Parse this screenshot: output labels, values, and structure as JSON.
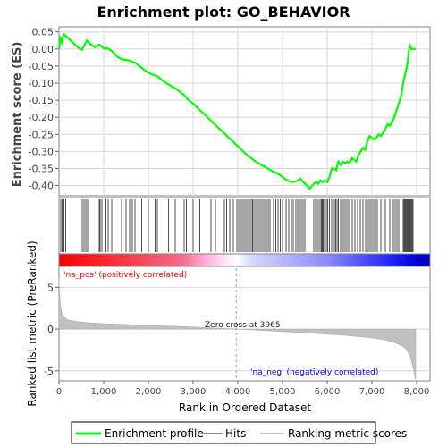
{
  "chart_data": {
    "type": "line",
    "title": "Enrichment plot: GO_BEHAVIOR",
    "top_panel": {
      "ylabel": "Enrichment score (ES)",
      "ylim": [
        -0.43,
        0.065
      ],
      "yticks": [
        0.05,
        0.0,
        -0.05,
        -0.1,
        -0.15,
        -0.2,
        -0.25,
        -0.3,
        -0.35,
        -0.4
      ],
      "ytick_labels": [
        "0.05",
        "0.00",
        "-0.05",
        "-0.10",
        "-0.15",
        "-0.20",
        "-0.25",
        "-0.30",
        "-0.35",
        "-0.40"
      ],
      "series": [
        {
          "name": "Enrichment profile",
          "color": "#00ff00",
          "x": [
            0,
            30,
            60,
            100,
            180,
            300,
            420,
            520,
            620,
            700,
            800,
            860,
            900,
            950,
            1000,
            1100,
            1200,
            1300,
            1400,
            1500,
            1600,
            1700,
            1800,
            1900,
            2000,
            2100,
            2200,
            2300,
            2400,
            2500,
            2600,
            2700,
            2800,
            2900,
            3000,
            3200,
            3400,
            3600,
            3800,
            4000,
            4200,
            4400,
            4600,
            4800,
            4900,
            5000,
            5100,
            5200,
            5300,
            5400,
            5500,
            5550,
            5600,
            5700,
            5750,
            5800,
            5850,
            5900,
            5950,
            6000,
            6050,
            6100,
            6150,
            6200,
            6250,
            6300,
            6350,
            6400,
            6450,
            6500,
            6550,
            6600,
            6650,
            6700,
            6750,
            6800,
            6850,
            6900,
            6950,
            7000,
            7050,
            7100,
            7150,
            7200,
            7250,
            7300,
            7350,
            7400,
            7450,
            7500,
            7550,
            7600,
            7650,
            7700,
            7750,
            7800,
            7820,
            7850,
            7870,
            7890,
            7900,
            7920,
            7940,
            7980
          ],
          "y": [
            0.0,
            0.03,
            0.02,
            0.043,
            0.035,
            0.02,
            0.005,
            -0.002,
            0.025,
            0.015,
            0.005,
            0.01,
            0.013,
            0.008,
            0.002,
            0.002,
            -0.008,
            -0.022,
            -0.03,
            -0.032,
            -0.035,
            -0.04,
            -0.05,
            -0.06,
            -0.07,
            -0.075,
            -0.08,
            -0.09,
            -0.1,
            -0.108,
            -0.115,
            -0.125,
            -0.135,
            -0.15,
            -0.16,
            -0.185,
            -0.21,
            -0.235,
            -0.26,
            -0.285,
            -0.31,
            -0.33,
            -0.345,
            -0.36,
            -0.365,
            -0.375,
            -0.385,
            -0.39,
            -0.388,
            -0.38,
            -0.395,
            -0.4,
            -0.41,
            -0.395,
            -0.39,
            -0.395,
            -0.385,
            -0.39,
            -0.385,
            -0.39,
            -0.375,
            -0.35,
            -0.35,
            -0.355,
            -0.33,
            -0.34,
            -0.33,
            -0.335,
            -0.33,
            -0.335,
            -0.32,
            -0.325,
            -0.33,
            -0.31,
            -0.3,
            -0.29,
            -0.295,
            -0.27,
            -0.255,
            -0.26,
            -0.265,
            -0.26,
            -0.25,
            -0.255,
            -0.245,
            -0.235,
            -0.22,
            -0.225,
            -0.215,
            -0.2,
            -0.18,
            -0.16,
            -0.14,
            -0.1,
            -0.07,
            -0.04,
            -0.01,
            0.01,
            0.005,
            0.0,
            0.0,
            0.0,
            0.0,
            0.0
          ]
        }
      ]
    },
    "hits": {
      "name": "Hits",
      "color": "#000000",
      "positions": [
        40,
        70,
        110,
        150,
        520,
        560,
        600,
        640,
        900,
        920,
        960,
        1050,
        1100,
        1180,
        1400,
        1500,
        1580,
        1640,
        1700,
        1850,
        2000,
        2150,
        2200,
        2350,
        2450,
        2600,
        2800,
        2850,
        3000,
        3150,
        3400,
        3500,
        3700,
        3750,
        3820,
        3900,
        3980,
        4020,
        4060,
        4100,
        4140,
        4180,
        4220,
        4260,
        4300,
        4330,
        4360,
        4400,
        4440,
        4480,
        4520,
        4560,
        4600,
        4640,
        4680,
        4720,
        4800,
        4850,
        4900,
        4950,
        5000,
        5080,
        5140,
        5200,
        5240,
        5300,
        5340,
        5380,
        5420,
        5460,
        5500,
        5700,
        5740,
        5780,
        5820,
        5860,
        5880,
        5900,
        5920,
        5950,
        5980,
        6010,
        6050,
        6100,
        6130,
        6160,
        6190,
        6220,
        6250,
        6300,
        6340,
        6380,
        6420,
        6460,
        6500,
        6560,
        6620,
        6680,
        6740,
        6800,
        6860,
        6920,
        6960,
        7000,
        7040,
        7080,
        7120,
        7200,
        7300,
        7400,
        7480,
        7520,
        7560,
        7600,
        7700,
        7720,
        7740,
        7760,
        7780,
        7800,
        7820,
        7840,
        7860,
        7880,
        7900,
        7920
      ]
    },
    "color_bar": {
      "stops": [
        "#ff0000",
        "#ffb6c1",
        "#ffffff",
        "#b3b3ff",
        "#0000ff",
        "#0000cc"
      ]
    },
    "bottom_panel": {
      "ylabel": "Ranked list metric (PreRanked)",
      "xlabel": "Rank in Ordered Dataset",
      "ylim": [
        -6.2,
        7.5
      ],
      "yticks": [
        5,
        0,
        -5
      ],
      "ytick_labels": [
        "5",
        "0",
        "-5"
      ],
      "xlim": [
        0,
        8300
      ],
      "xticks": [
        0,
        1000,
        2000,
        3000,
        4000,
        5000,
        6000,
        7000,
        8000
      ],
      "xtick_labels": [
        "0",
        "1,000",
        "2,000",
        "3,000",
        "4,000",
        "5,000",
        "6,000",
        "7,000",
        "8,000"
      ],
      "metric_x": [
        0,
        10,
        30,
        60,
        100,
        200,
        400,
        700,
        1000,
        1500,
        2000,
        2500,
        3000,
        3500,
        3965,
        4500,
        5000,
        5500,
        6000,
        6500,
        7000,
        7300,
        7500,
        7700,
        7800,
        7860,
        7900,
        7940,
        7960,
        7980
      ],
      "metric_y": [
        6.0,
        4.5,
        3.0,
        2.0,
        1.5,
        1.1,
        0.9,
        0.75,
        0.65,
        0.55,
        0.45,
        0.35,
        0.25,
        0.12,
        0.0,
        -0.15,
        -0.3,
        -0.45,
        -0.6,
        -0.8,
        -1.05,
        -1.3,
        -1.6,
        -2.1,
        -2.7,
        -3.4,
        -4.2,
        -5.0,
        -5.8,
        -6.0
      ],
      "zero_cross_label": "Zero cross at 3965",
      "zero_cross": 3965,
      "pos_label": "'na_pos' (positively correlated)",
      "neg_label": "'na_neg' (negatively correlated)",
      "pos_color": "#ff0000",
      "neg_color": "#0000ff"
    },
    "legend": [
      {
        "label": "Enrichment profile",
        "color": "#00ff00"
      },
      {
        "label": "Hits",
        "color": "#808080"
      },
      {
        "label": "Ranking metric scores",
        "color": "#c0c0c0"
      }
    ]
  }
}
